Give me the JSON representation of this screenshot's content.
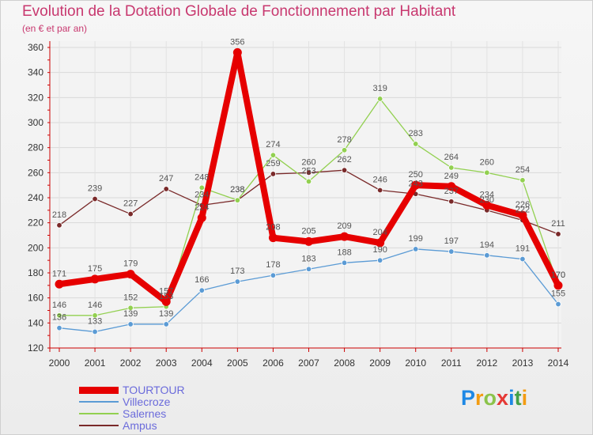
{
  "chart_data": {
    "type": "line",
    "title": "Evolution de la Dotation Globale de Fonctionnement par Habitant",
    "subtitle": "(en € et par an)",
    "categories": [
      "2000",
      "2001",
      "2002",
      "2003",
      "2004",
      "2005",
      "2006",
      "2007",
      "2008",
      "2009",
      "2010",
      "2011",
      "2012",
      "2013",
      "2014"
    ],
    "ylim": [
      120,
      360
    ],
    "yticks": [
      120,
      140,
      160,
      180,
      200,
      220,
      240,
      260,
      280,
      300,
      320,
      340,
      360
    ],
    "grid": true,
    "legend_position": "bottom-left",
    "series": [
      {
        "name": "TOURTOUR",
        "color": "#e60000",
        "values": [
          171,
          175,
          179,
          157,
          224,
          356,
          208,
          205,
          209,
          204,
          250,
          249,
          234,
          226,
          170
        ],
        "labels": [
          "171",
          "175",
          "179",
          "157",
          "224",
          "356",
          "208",
          "205",
          "209",
          "204",
          "250",
          "249",
          "234",
          "226",
          "170"
        ]
      },
      {
        "name": "Villecroze",
        "color": "#5b9bd5",
        "values": [
          136,
          133,
          139,
          139,
          166,
          173,
          178,
          183,
          188,
          190,
          199,
          197,
          194,
          191,
          155
        ],
        "labels": [
          "136",
          "133",
          "139",
          "139",
          "166",
          "173",
          "178",
          "183",
          "188",
          "190",
          "199",
          "197",
          "194",
          "191",
          "155"
        ]
      },
      {
        "name": "Salernes",
        "color": "#92d050",
        "values": [
          146,
          146,
          152,
          153,
          248,
          238,
          274,
          253,
          278,
          319,
          283,
          264,
          260,
          254,
          170
        ],
        "labels": [
          "146",
          "146",
          "152",
          "153",
          "248",
          "238",
          "274",
          "253",
          "278",
          "319",
          "283",
          "264",
          "260",
          "254",
          "170"
        ]
      },
      {
        "name": "Ampus",
        "color": "#7a2a2a",
        "values": [
          218,
          239,
          227,
          247,
          234,
          238,
          259,
          260,
          262,
          246,
          243,
          237,
          230,
          222,
          211
        ],
        "labels": [
          "218",
          "239",
          "227",
          "247",
          "234",
          "238",
          "259",
          "260",
          "262",
          "246",
          "243",
          "237",
          "230",
          "222",
          "211"
        ]
      }
    ]
  },
  "logo": {
    "text": "Proxiti"
  }
}
